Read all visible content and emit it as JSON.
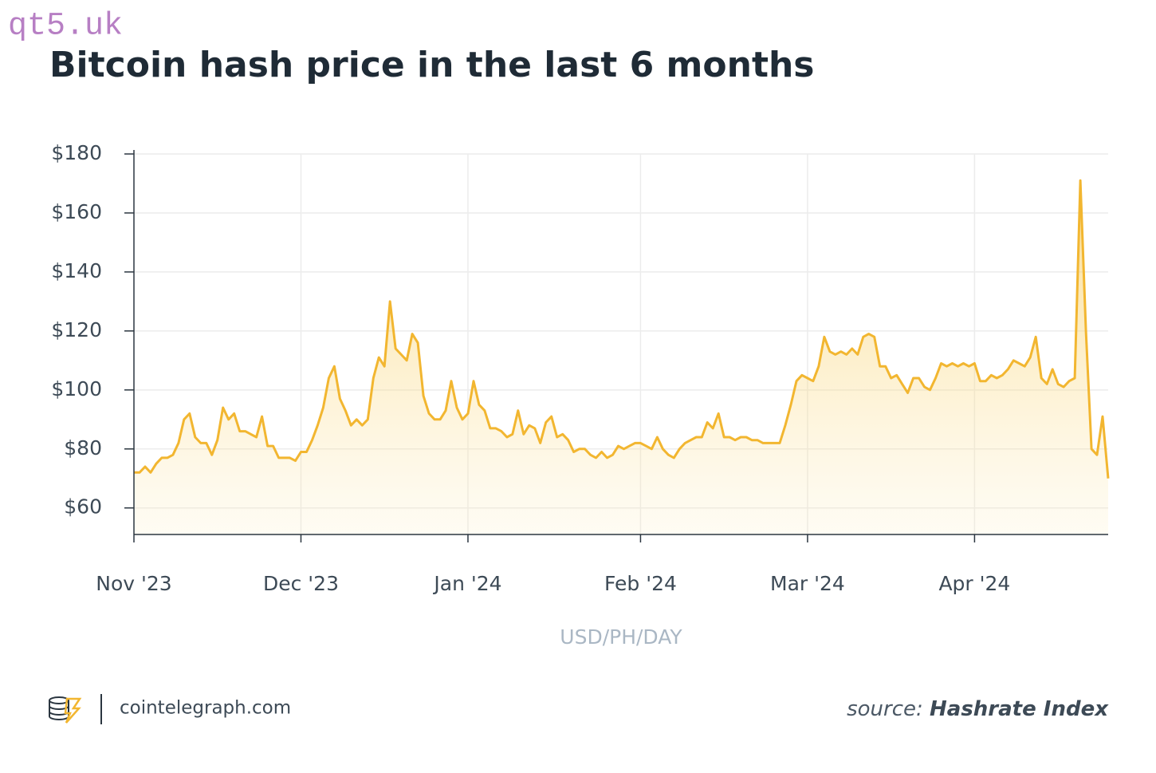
{
  "chart_data": {
    "type": "area",
    "watermark": "qt5.uk",
    "title": "Bitcoin hash price in the last 6 months",
    "x_label": "USD/PH/DAY",
    "footer_site": "cointelegraph.com",
    "source_prefix": "source:",
    "source_name": "Hashrate Index",
    "color": "#f2b630",
    "grid": true,
    "ylim": [
      51,
      180
    ],
    "yticks": [
      {
        "value": 60,
        "label": "$60"
      },
      {
        "value": 80,
        "label": "$80"
      },
      {
        "value": 100,
        "label": "$100"
      },
      {
        "value": 120,
        "label": "$120"
      },
      {
        "value": 140,
        "label": "$140"
      },
      {
        "value": 160,
        "label": "$160"
      },
      {
        "value": 180,
        "label": "$180"
      }
    ],
    "categories": [
      "Nov '23",
      null,
      null,
      null,
      null,
      null,
      null,
      null,
      null,
      null,
      null,
      null,
      null,
      null,
      null,
      null,
      null,
      null,
      null,
      null,
      null,
      null,
      null,
      null,
      null,
      null,
      null,
      null,
      null,
      null,
      "Dec '23",
      null,
      null,
      null,
      null,
      null,
      null,
      null,
      null,
      null,
      null,
      null,
      null,
      null,
      null,
      null,
      null,
      null,
      null,
      null,
      null,
      null,
      null,
      null,
      null,
      null,
      null,
      null,
      null,
      null,
      "Jan '24",
      null,
      null,
      null,
      null,
      null,
      null,
      null,
      null,
      null,
      null,
      null,
      null,
      null,
      null,
      null,
      null,
      null,
      null,
      null,
      null,
      null,
      null,
      null,
      null,
      null,
      null,
      null,
      null,
      null,
      null,
      "Feb '24",
      null,
      null,
      null,
      null,
      null,
      null,
      null,
      null,
      null,
      null,
      null,
      null,
      null,
      null,
      null,
      null,
      null,
      null,
      null,
      null,
      null,
      null,
      null,
      null,
      null,
      null,
      null,
      null,
      null,
      "Mar '24",
      null,
      null,
      null,
      null,
      null,
      null,
      null,
      null,
      null,
      null,
      null,
      null,
      null,
      null,
      null,
      null,
      null,
      null,
      null,
      null,
      null,
      null,
      null,
      null,
      null,
      null,
      null,
      null,
      null,
      "Apr '24",
      null,
      null,
      null,
      null,
      null,
      null,
      null,
      null,
      null,
      null,
      null,
      null,
      null,
      null,
      null,
      null,
      null,
      null,
      null,
      null,
      null,
      null,
      null,
      null
    ],
    "values": [
      72,
      72,
      74,
      72,
      75,
      77,
      77,
      78,
      82,
      90,
      92,
      84,
      82,
      82,
      78,
      83,
      94,
      90,
      92,
      86,
      86,
      85,
      84,
      91,
      81,
      81,
      77,
      77,
      77,
      76,
      79,
      79,
      83,
      88,
      94,
      104,
      108,
      97,
      93,
      88,
      90,
      88,
      90,
      104,
      111,
      108,
      130,
      114,
      112,
      110,
      119,
      116,
      98,
      92,
      90,
      90,
      93,
      103,
      94,
      90,
      92,
      103,
      95,
      93,
      87,
      87,
      86,
      84,
      85,
      93,
      85,
      88,
      87,
      82,
      89,
      91,
      84,
      85,
      83,
      79,
      80,
      80,
      78,
      77,
      79,
      77,
      78,
      81,
      80,
      81,
      82,
      82,
      81,
      80,
      84,
      80,
      78,
      77,
      80,
      82,
      83,
      84,
      84,
      89,
      87,
      92,
      84,
      84,
      83,
      84,
      84,
      83,
      83,
      82,
      82,
      82,
      82,
      88,
      95,
      103,
      105,
      104,
      103,
      108,
      118,
      113,
      112,
      113,
      112,
      114,
      112,
      118,
      119,
      118,
      108,
      108,
      104,
      105,
      102,
      99,
      104,
      104,
      101,
      100,
      104,
      109,
      108,
      109,
      108,
      109,
      108,
      109,
      103,
      103,
      105,
      104,
      105,
      107,
      110,
      109,
      108,
      111,
      118,
      104,
      102,
      107,
      102,
      101,
      103,
      104,
      171,
      120,
      80,
      78,
      91,
      70
    ]
  }
}
